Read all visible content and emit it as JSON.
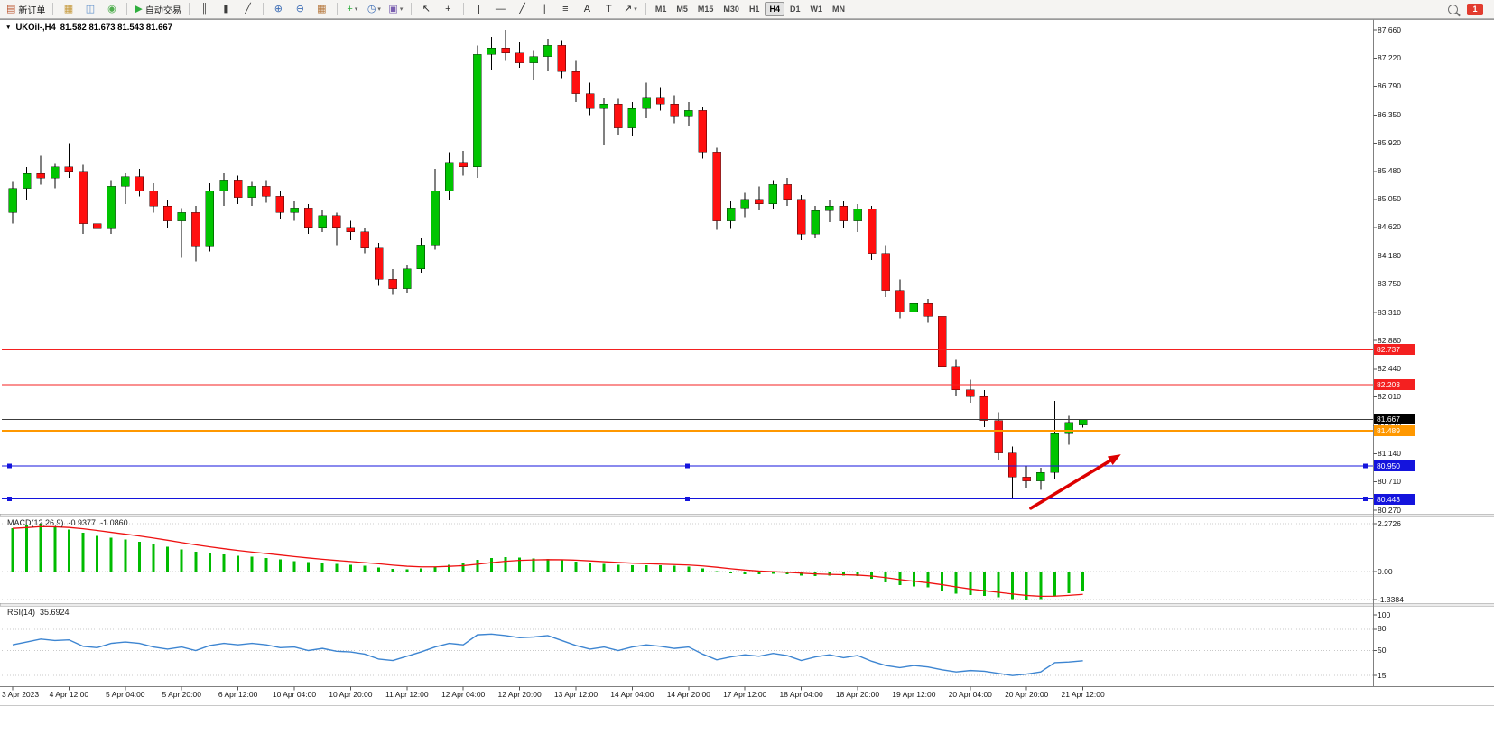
{
  "chart": {
    "menu_arrow": "▼",
    "title": "UKOil-,H4",
    "ohlc": "81.582 81.673 81.543 81.667"
  },
  "toolbar": {
    "badge": "1",
    "caret": "▾",
    "groups": [
      {
        "items": [
          {
            "name": "new-order-button",
            "glyph": "▤",
            "color": "#bd5a35",
            "label": "新订单"
          }
        ]
      },
      {
        "items": [
          {
            "name": "charts-icon",
            "glyph": "▦",
            "color": "#c79b3f"
          },
          {
            "name": "data-window-icon",
            "glyph": "◫",
            "color": "#5f8fca"
          },
          {
            "name": "navigator-icon",
            "glyph": "◉",
            "color": "#4fae4f"
          }
        ]
      },
      {
        "items": [
          {
            "name": "autotrading-button",
            "glyph": "▶",
            "color": "#2fae3e",
            "label": "自动交易"
          }
        ]
      },
      {
        "items": [
          {
            "name": "bar-chart-icon",
            "glyph": "║",
            "color": "#3c3c3c"
          },
          {
            "name": "candlestick-chart-icon",
            "glyph": "▮",
            "color": "#3c3c3c",
            "active": true
          },
          {
            "name": "line-chart-icon",
            "glyph": "╱",
            "color": "#3c3c3c"
          }
        ]
      },
      {
        "items": [
          {
            "name": "zoom-in-icon",
            "glyph": "⊕",
            "color": "#3d6db5"
          },
          {
            "name": "zoom-out-icon",
            "glyph": "⊖",
            "color": "#3d6db5"
          },
          {
            "name": "tile-windows-icon",
            "glyph": "▦",
            "color": "#b5763b"
          }
        ]
      },
      {
        "items": [
          {
            "name": "indicators-icon",
            "glyph": "+",
            "color": "#2fae3e",
            "dropdown": true
          },
          {
            "name": "periods-icon",
            "glyph": "◷",
            "color": "#3d6db5",
            "dropdown": true
          },
          {
            "name": "templates-icon",
            "glyph": "▣",
            "color": "#7a5fb0",
            "dropdown": true
          }
        ]
      },
      {
        "items": [
          {
            "name": "cursor-icon",
            "glyph": "↖",
            "color": "#2c2c2c"
          },
          {
            "name": "crosshair-icon",
            "glyph": "+",
            "color": "#2c2c2c"
          }
        ]
      },
      {
        "items": [
          {
            "name": "vertical-line-icon",
            "glyph": "|",
            "color": "#2c2c2c"
          },
          {
            "name": "horizontal-line-icon",
            "glyph": "—",
            "color": "#2c2c2c"
          },
          {
            "name": "trendline-icon",
            "glyph": "╱",
            "color": "#2c2c2c"
          },
          {
            "name": "channel-icon",
            "glyph": "∥",
            "color": "#2c2c2c"
          },
          {
            "name": "fibonacci-icon",
            "glyph": "≡",
            "color": "#2c2c2c"
          },
          {
            "name": "text-icon",
            "glyph": "A",
            "color": "#2c2c2c"
          },
          {
            "name": "label-icon",
            "glyph": "T",
            "color": "#2c2c2c"
          },
          {
            "name": "arrows-icon",
            "glyph": "↗",
            "color": "#2c2c2c",
            "dropdown": true
          }
        ]
      },
      {
        "items": [
          {
            "name": "timeframe-m1",
            "label": "M1",
            "tf": true
          },
          {
            "name": "timeframe-m5",
            "label": "M5",
            "tf": true
          },
          {
            "name": "timeframe-m15",
            "label": "M15",
            "tf": true
          },
          {
            "name": "timeframe-m30",
            "label": "M30",
            "tf": true
          },
          {
            "name": "timeframe-h1",
            "label": "H1",
            "tf": true
          },
          {
            "name": "timeframe-h4",
            "label": "H4",
            "tf": true,
            "active": true
          },
          {
            "name": "timeframe-d1",
            "label": "D1",
            "tf": true
          },
          {
            "name": "timeframe-w1",
            "label": "W1",
            "tf": true
          },
          {
            "name": "timeframe-mn",
            "label": "MN",
            "tf": true
          }
        ]
      }
    ]
  },
  "price_scale": {
    "labels": [
      "87.660",
      "87.220",
      "86.790",
      "86.350",
      "85.920",
      "85.480",
      "85.050",
      "84.620",
      "84.180",
      "83.750",
      "83.310",
      "82.880",
      "82.440",
      "82.010",
      "81.570",
      "81.140",
      "80.710",
      "80.270"
    ]
  },
  "price_lines": [
    {
      "name": "resistance-line-1",
      "price": "82.737",
      "color": "#f42020",
      "width": 1,
      "interactable": true
    },
    {
      "name": "resistance-line-2",
      "price": "82.203",
      "color": "#f42020",
      "width": 1,
      "interactable": true
    },
    {
      "name": "bid-price-line",
      "price": "81.667",
      "color": "#3c3c3c",
      "width": 1,
      "tag_color": "#000000",
      "interactable": false
    },
    {
      "name": "entry-price-line",
      "price": "81.489",
      "color": "#ff9800",
      "width": 2,
      "interactable": true
    },
    {
      "name": "support-line-1",
      "price": "80.950",
      "color": "#1414dd",
      "width": 1,
      "handles": true,
      "interactable": true
    },
    {
      "name": "support-line-2",
      "price": "80.443",
      "color": "#1414dd",
      "width": 1,
      "handles": true,
      "interactable": true
    }
  ],
  "arrow": {
    "name": "trend-arrow",
    "color": "#dd0000",
    "width": 3.5,
    "from": {
      "index": 72.3,
      "price": 80.3
    },
    "to": {
      "index": 78.7,
      "price": 81.13
    }
  },
  "chart_data": {
    "type": "candlestick",
    "symbol": "UKOil-",
    "timeframe": "H4",
    "colors": {
      "up": "#00c400",
      "down": "#ff0f0f"
    },
    "label_step": 4,
    "time_labels": [
      "3 Apr 2023",
      "4 Apr 12:00",
      "5 Apr 04:00",
      "5 Apr 20:00",
      "6 Apr 12:00",
      "10 Apr 04:00",
      "10 Apr 20:00",
      "11 Apr 12:00",
      "12 Apr 04:00",
      "12 Apr 20:00",
      "13 Apr 12:00",
      "14 Apr 04:00",
      "14 Apr 20:00",
      "17 Apr 12:00",
      "18 Apr 04:00",
      "18 Apr 20:00",
      "19 Apr 12:00",
      "20 Apr 04:00",
      "20 Apr 20:00",
      "21 Apr 12:00"
    ],
    "candles": [
      [
        84.85,
        85.32,
        84.68,
        85.22
      ],
      [
        85.22,
        85.55,
        85.05,
        85.45
      ],
      [
        85.45,
        85.72,
        85.28,
        85.38
      ],
      [
        85.38,
        85.6,
        85.22,
        85.55
      ],
      [
        85.55,
        85.92,
        85.38,
        85.48
      ],
      [
        85.48,
        85.58,
        84.52,
        84.68
      ],
      [
        84.68,
        84.95,
        84.45,
        84.6
      ],
      [
        84.6,
        85.35,
        84.52,
        85.25
      ],
      [
        85.25,
        85.45,
        84.98,
        85.4
      ],
      [
        85.4,
        85.52,
        85.1,
        85.18
      ],
      [
        85.18,
        85.3,
        84.85,
        84.95
      ],
      [
        84.95,
        85.05,
        84.62,
        84.72
      ],
      [
        84.72,
        84.92,
        84.15,
        84.85
      ],
      [
        84.85,
        84.95,
        84.1,
        84.32
      ],
      [
        84.32,
        85.3,
        84.25,
        85.18
      ],
      [
        85.18,
        85.45,
        84.95,
        85.35
      ],
      [
        85.35,
        85.42,
        84.98,
        85.08
      ],
      [
        85.08,
        85.32,
        84.95,
        85.25
      ],
      [
        85.25,
        85.35,
        85.0,
        85.1
      ],
      [
        85.1,
        85.18,
        84.75,
        84.85
      ],
      [
        84.85,
        85.02,
        84.72,
        84.92
      ],
      [
        84.92,
        84.98,
        84.52,
        84.62
      ],
      [
        84.62,
        84.88,
        84.55,
        84.8
      ],
      [
        84.8,
        84.85,
        84.35,
        84.62
      ],
      [
        84.62,
        84.72,
        84.42,
        84.55
      ],
      [
        84.55,
        84.62,
        84.22,
        84.3
      ],
      [
        84.3,
        84.38,
        83.72,
        83.82
      ],
      [
        83.82,
        83.98,
        83.58,
        83.68
      ],
      [
        83.68,
        84.05,
        83.62,
        83.98
      ],
      [
        83.98,
        84.45,
        83.92,
        84.35
      ],
      [
        84.35,
        85.52,
        84.28,
        85.18
      ],
      [
        85.18,
        85.78,
        85.05,
        85.62
      ],
      [
        85.62,
        85.8,
        85.42,
        85.55
      ],
      [
        85.55,
        87.42,
        85.38,
        87.28
      ],
      [
        87.28,
        87.55,
        87.05,
        87.38
      ],
      [
        87.38,
        87.66,
        87.18,
        87.3
      ],
      [
        87.3,
        87.48,
        87.08,
        87.15
      ],
      [
        87.15,
        87.35,
        86.88,
        87.25
      ],
      [
        87.25,
        87.52,
        87.02,
        87.42
      ],
      [
        87.42,
        87.5,
        86.92,
        87.02
      ],
      [
        87.02,
        87.18,
        86.55,
        86.68
      ],
      [
        86.68,
        86.85,
        86.35,
        86.45
      ],
      [
        86.45,
        86.62,
        85.88,
        86.52
      ],
      [
        86.52,
        86.6,
        86.05,
        86.15
      ],
      [
        86.15,
        86.55,
        86.02,
        86.45
      ],
      [
        86.45,
        86.85,
        86.3,
        86.62
      ],
      [
        86.62,
        86.78,
        86.42,
        86.52
      ],
      [
        86.52,
        86.65,
        86.22,
        86.32
      ],
      [
        86.32,
        86.55,
        86.18,
        86.42
      ],
      [
        86.42,
        86.48,
        85.68,
        85.78
      ],
      [
        85.78,
        85.85,
        84.58,
        84.72
      ],
      [
        84.72,
        85.02,
        84.6,
        84.92
      ],
      [
        84.92,
        85.15,
        84.78,
        85.05
      ],
      [
        85.05,
        85.25,
        84.88,
        84.98
      ],
      [
        84.98,
        85.35,
        84.9,
        85.28
      ],
      [
        85.28,
        85.38,
        84.95,
        85.05
      ],
      [
        85.05,
        85.12,
        84.42,
        84.52
      ],
      [
        84.52,
        84.95,
        84.45,
        84.88
      ],
      [
        84.88,
        85.05,
        84.7,
        84.95
      ],
      [
        84.95,
        85.02,
        84.62,
        84.72
      ],
      [
        84.72,
        84.98,
        84.55,
        84.9
      ],
      [
        84.9,
        84.95,
        84.12,
        84.22
      ],
      [
        84.22,
        84.35,
        83.55,
        83.65
      ],
      [
        83.65,
        83.82,
        83.22,
        83.32
      ],
      [
        83.32,
        83.52,
        83.18,
        83.45
      ],
      [
        83.45,
        83.52,
        83.15,
        83.25
      ],
      [
        83.25,
        83.32,
        82.38,
        82.48
      ],
      [
        82.48,
        82.58,
        82.02,
        82.12
      ],
      [
        82.12,
        82.28,
        81.92,
        82.02
      ],
      [
        82.02,
        82.12,
        81.55,
        81.65
      ],
      [
        81.65,
        81.78,
        81.05,
        81.15
      ],
      [
        81.15,
        81.25,
        80.44,
        80.78
      ],
      [
        80.78,
        80.95,
        80.62,
        80.72
      ],
      [
        80.72,
        80.92,
        80.58,
        80.85
      ],
      [
        80.85,
        81.95,
        80.75,
        81.45
      ],
      [
        81.45,
        81.72,
        81.28,
        81.62
      ],
      [
        81.582,
        81.673,
        81.543,
        81.667
      ]
    ]
  },
  "macd": {
    "name": "MACD(12,26,9)",
    "value_main": "-0.9377",
    "value_signal": "-1.0860",
    "scale_labels": [
      "2.2726",
      "0.00",
      "-1.3384"
    ],
    "scale": {
      "max": 2.2726,
      "min": -1.3384
    },
    "colors": {
      "histogram": "#00bb00",
      "signal": "#ee1111"
    },
    "values": [
      2.05,
      2.2,
      2.2726,
      2.1,
      2.0,
      1.85,
      1.7,
      1.6,
      1.52,
      1.42,
      1.3,
      1.18,
      1.05,
      0.95,
      0.88,
      0.82,
      0.76,
      0.7,
      0.64,
      0.57,
      0.5,
      0.44,
      0.4,
      0.36,
      0.32,
      0.27,
      0.2,
      0.12,
      0.1,
      0.14,
      0.22,
      0.32,
      0.38,
      0.55,
      0.65,
      0.68,
      0.66,
      0.62,
      0.6,
      0.55,
      0.48,
      0.4,
      0.36,
      0.32,
      0.3,
      0.3,
      0.29,
      0.27,
      0.24,
      0.15,
      0.02,
      -0.08,
      -0.12,
      -0.12,
      -0.1,
      -0.12,
      -0.2,
      -0.22,
      -0.2,
      -0.2,
      -0.22,
      -0.35,
      -0.52,
      -0.65,
      -0.7,
      -0.75,
      -0.9,
      -1.05,
      -1.12,
      -1.15,
      -1.22,
      -1.3,
      -1.3384,
      -1.3,
      -1.15,
      -1.02,
      -0.9377
    ]
  },
  "rsi": {
    "name": "RSI(14)",
    "value": "35.6924",
    "color": "#3d85d1",
    "levels": [
      80,
      50,
      15
    ],
    "scale_labels": [
      "100",
      "80",
      "50",
      "15"
    ],
    "values": [
      58,
      62,
      66,
      64,
      65,
      56,
      54,
      60,
      62,
      60,
      55,
      52,
      55,
      50,
      57,
      60,
      58,
      60,
      58,
      54,
      55,
      50,
      53,
      49,
      48,
      45,
      38,
      36,
      42,
      48,
      55,
      60,
      58,
      72,
      73,
      71,
      68,
      69,
      71,
      64,
      57,
      52,
      55,
      50,
      55,
      58,
      56,
      53,
      55,
      45,
      37,
      41,
      44,
      42,
      46,
      43,
      36,
      41,
      44,
      40,
      43,
      35,
      29,
      26,
      29,
      27,
      23,
      20,
      22,
      21,
      18,
      15,
      17,
      20,
      33,
      34,
      35.6924
    ]
  }
}
